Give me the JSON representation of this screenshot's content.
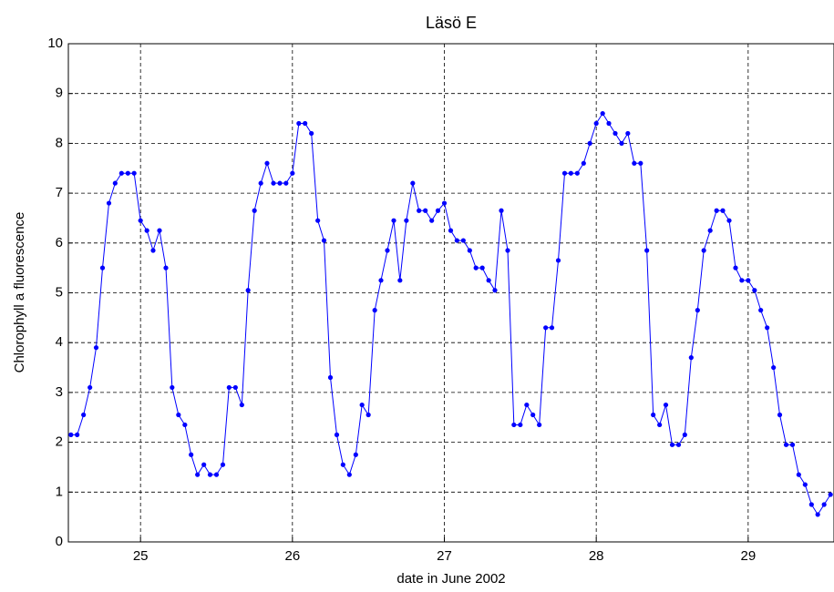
{
  "chart_data": {
    "type": "line",
    "title": "Läsö E",
    "xlabel": "date in June 2002",
    "ylabel": "Chlorophyll a fluorescence",
    "x": [
      24.542,
      24.583,
      24.625,
      24.667,
      24.708,
      24.75,
      24.792,
      24.833,
      24.875,
      24.917,
      24.958,
      25.0,
      25.042,
      25.083,
      25.125,
      25.167,
      25.208,
      25.25,
      25.292,
      25.333,
      25.375,
      25.417,
      25.458,
      25.5,
      25.542,
      25.583,
      25.625,
      25.667,
      25.708,
      25.75,
      25.792,
      25.833,
      25.875,
      25.917,
      25.958,
      26.0,
      26.042,
      26.083,
      26.125,
      26.167,
      26.208,
      26.25,
      26.292,
      26.333,
      26.375,
      26.417,
      26.458,
      26.5,
      26.542,
      26.583,
      26.625,
      26.667,
      26.708,
      26.75,
      26.792,
      26.833,
      26.875,
      26.917,
      26.958,
      27.0,
      27.042,
      27.083,
      27.125,
      27.167,
      27.208,
      27.25,
      27.292,
      27.333,
      27.375,
      27.417,
      27.458,
      27.5,
      27.542,
      27.583,
      27.625,
      27.667,
      27.708,
      27.75,
      27.792,
      27.833,
      27.875,
      27.917,
      27.958,
      28.0,
      28.042,
      28.083,
      28.125,
      28.167,
      28.208,
      28.25,
      28.292,
      28.333,
      28.375,
      28.417,
      28.458,
      28.5,
      28.542,
      28.583,
      28.625,
      28.667,
      28.708,
      28.75,
      28.792,
      28.833,
      28.875,
      28.917,
      28.958,
      29.0,
      29.042,
      29.083,
      29.125,
      29.167,
      29.208,
      29.25,
      29.292,
      29.333,
      29.375,
      29.417,
      29.458,
      29.5,
      29.542
    ],
    "values": [
      2.15,
      2.15,
      2.55,
      3.1,
      3.9,
      5.5,
      6.8,
      7.2,
      7.4,
      7.4,
      7.4,
      6.45,
      6.25,
      5.85,
      6.25,
      5.5,
      3.1,
      2.55,
      2.35,
      1.75,
      1.35,
      1.55,
      1.35,
      1.35,
      1.55,
      3.1,
      3.1,
      2.75,
      5.05,
      6.65,
      7.2,
      7.6,
      7.2,
      7.2,
      7.2,
      7.4,
      8.4,
      8.4,
      8.2,
      6.45,
      6.05,
      3.3,
      2.15,
      1.55,
      1.35,
      1.75,
      2.75,
      2.55,
      4.65,
      5.25,
      5.85,
      6.45,
      5.25,
      6.45,
      7.2,
      6.65,
      6.65,
      6.45,
      6.65,
      6.8,
      6.25,
      6.05,
      6.05,
      5.85,
      5.5,
      5.5,
      5.25,
      5.05,
      6.65,
      5.85,
      2.35,
      2.35,
      2.75,
      2.55,
      2.35,
      4.3,
      4.3,
      5.65,
      7.4,
      7.4,
      7.4,
      7.6,
      8.0,
      8.4,
      8.6,
      8.4,
      8.2,
      8.0,
      8.2,
      7.6,
      7.6,
      5.85,
      2.55,
      2.35,
      2.75,
      1.95,
      1.95,
      2.15,
      3.7,
      4.65,
      5.85,
      6.25,
      6.65,
      6.65,
      6.45,
      5.5,
      5.25,
      5.25,
      5.05,
      4.65,
      4.3,
      3.5,
      2.55,
      1.95,
      1.95,
      1.35,
      1.15,
      0.75,
      0.55,
      0.75,
      0.95
    ],
    "color": "#0000ff",
    "xlim": [
      24.525,
      29.565
    ],
    "xticks": [
      25,
      26,
      27,
      28,
      29
    ],
    "ylim": [
      0,
      10
    ],
    "yticks": [
      0,
      1,
      2,
      3,
      4,
      5,
      6,
      7,
      8,
      9,
      10
    ],
    "grid": true
  }
}
